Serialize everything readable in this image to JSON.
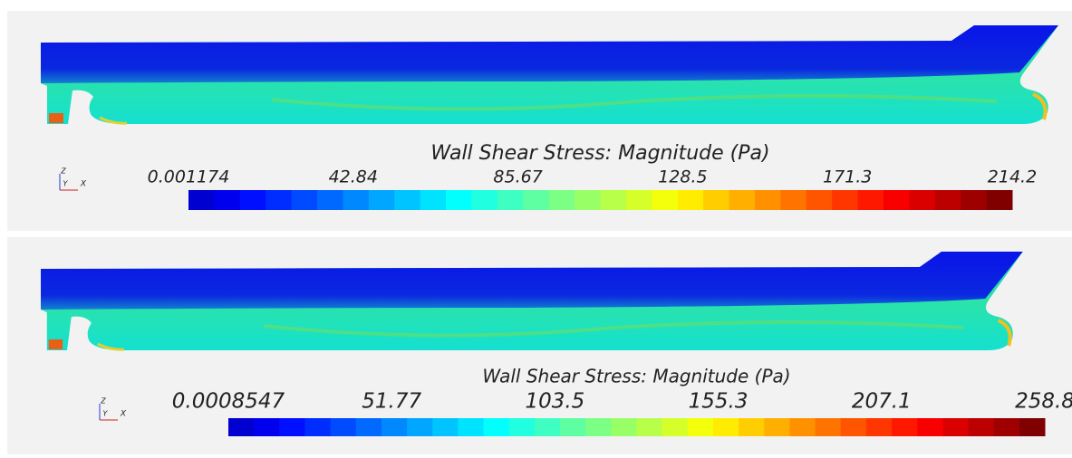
{
  "panels": [
    {
      "legend": {
        "title": "Wall Shear Stress: Magnitude (Pa)",
        "ticks": [
          "0.001174",
          "42.84",
          "85.67",
          "128.5",
          "171.3",
          "214.2"
        ]
      },
      "triad": {
        "z": "Z",
        "y": "Y",
        "x": "X"
      }
    },
    {
      "legend": {
        "title": "Wall Shear Stress: Magnitude (Pa)",
        "ticks": [
          "0.0008547",
          "51.77",
          "103.5",
          "155.3",
          "207.1",
          "258.8"
        ]
      },
      "triad": {
        "z": "Z",
        "y": "Y",
        "x": "X"
      }
    }
  ]
}
